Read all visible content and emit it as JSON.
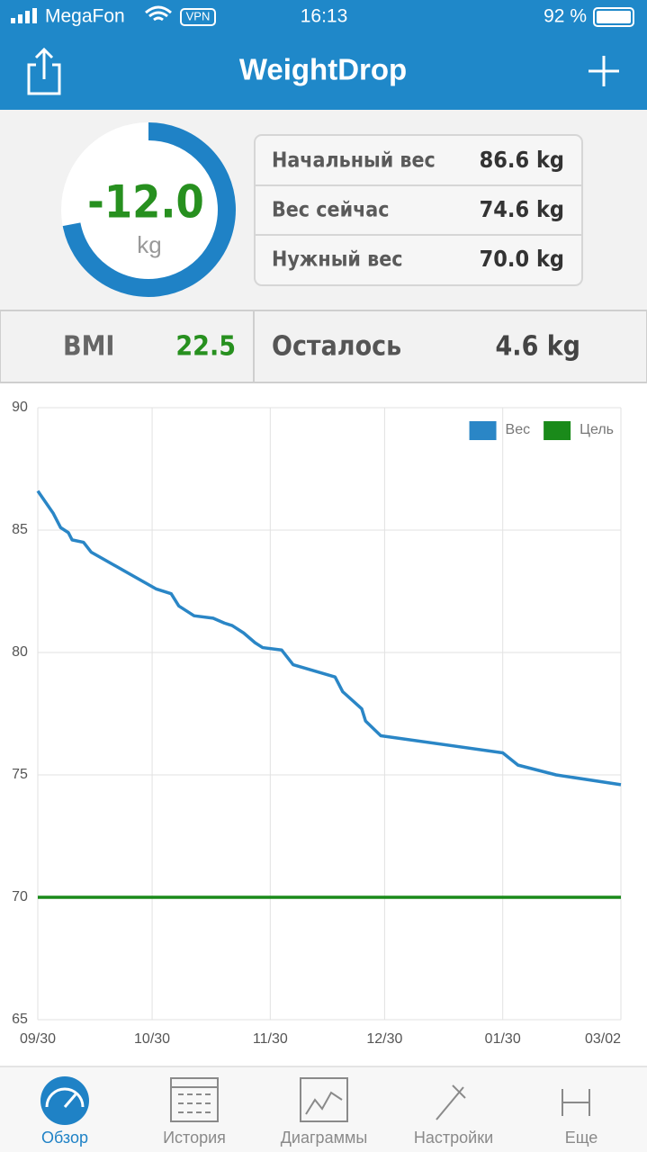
{
  "status_bar": {
    "carrier": "MegaFon",
    "vpn": "VPN",
    "time": "16:13",
    "battery": "92 %"
  },
  "header": {
    "title": "WeightDrop"
  },
  "summary": {
    "change": "-12.0",
    "unit": "kg",
    "rows": [
      [
        "Начальный вес",
        "86.6 kg"
      ],
      [
        "Вес сейчас",
        "74.6 kg"
      ],
      [
        "Нужный вес",
        "70.0 kg"
      ]
    ],
    "bmi_label": "BMI",
    "bmi_value": "22.5",
    "remaining_label": "Осталось",
    "remaining_value": "4.6 kg"
  },
  "chart_data": {
    "type": "line",
    "xlim": [
      "09/30",
      "03/02"
    ],
    "xticks": [
      "09/30",
      "10/30",
      "11/30",
      "12/30",
      "01/30",
      "03/02"
    ],
    "ylim": [
      65,
      90
    ],
    "yticks": [
      65,
      70,
      75,
      80,
      85,
      90
    ],
    "grid": true,
    "legend": "top-right",
    "series": [
      {
        "name": "Вес",
        "color": "#2a86c6",
        "x": [
          "09/30",
          "10/04",
          "10/06",
          "10/08",
          "10/09",
          "10/12",
          "10/14",
          "10/31",
          "11/04",
          "11/06",
          "11/10",
          "11/15",
          "11/18",
          "11/20",
          "11/23",
          "11/26",
          "11/28",
          "12/03",
          "12/06",
          "12/17",
          "12/19",
          "12/24",
          "12/25",
          "12/29",
          "01/30",
          "02/03",
          "02/13",
          "03/02"
        ],
        "values": [
          86.6,
          85.7,
          85.1,
          84.9,
          84.6,
          84.5,
          84.1,
          82.6,
          82.4,
          81.9,
          81.5,
          81.4,
          81.2,
          81.1,
          80.8,
          80.4,
          80.2,
          80.1,
          79.5,
          79.0,
          78.4,
          77.7,
          77.2,
          76.6,
          75.9,
          75.4,
          75.0,
          74.6
        ]
      },
      {
        "name": "Цель",
        "color": "#1a8a1a",
        "x": [
          "09/30",
          "03/02"
        ],
        "values": [
          70,
          70
        ]
      }
    ]
  },
  "tabs": [
    "Обзор",
    "История",
    "Диаграммы",
    "Настройки",
    "Еще"
  ]
}
